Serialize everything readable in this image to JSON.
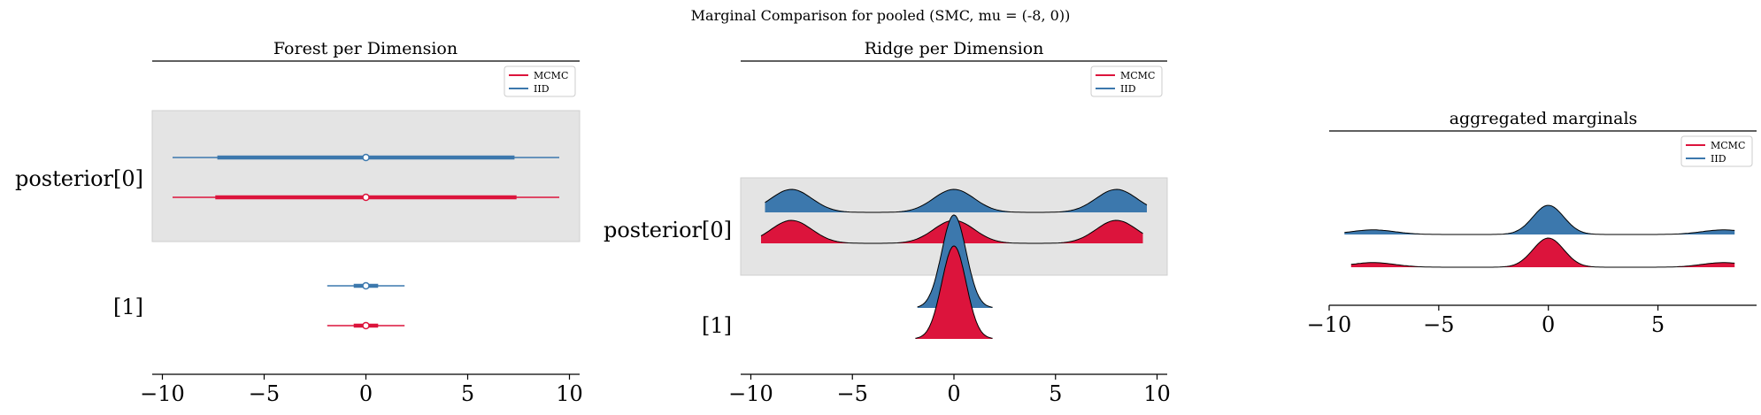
{
  "figure": {
    "title": "Marginal Comparison for pooled (SMC, mu = (-8, 0))"
  },
  "colors": {
    "MCMC": "#dc143c",
    "IID": "#3c78ad",
    "band": "#e4e4e4"
  },
  "chart_data": [
    {
      "type": "forest",
      "title": "Forest per Dimension",
      "y_labels": [
        "posterior[0]",
        "[1]"
      ],
      "x_ticks": [
        -10,
        -5,
        0,
        5,
        10
      ],
      "xlim": [
        -10.5,
        10.5
      ],
      "legend": {
        "position": "top-right",
        "entries": [
          "MCMC",
          "IID"
        ]
      },
      "series": [
        {
          "name": "IID",
          "rows": [
            {
              "label": "posterior[0]",
              "median": 0,
              "hdi_50": [
                -7.3,
                7.3
              ],
              "hdi_94": [
                -9.5,
                9.5
              ]
            },
            {
              "label": "[1]",
              "median": 0,
              "hdi_50": [
                -0.6,
                0.6
              ],
              "hdi_94": [
                -1.9,
                1.9
              ]
            }
          ]
        },
        {
          "name": "MCMC",
          "rows": [
            {
              "label": "posterior[0]",
              "median": 0,
              "hdi_50": [
                -7.4,
                7.4
              ],
              "hdi_94": [
                -9.5,
                9.5
              ]
            },
            {
              "label": "[1]",
              "median": 0,
              "hdi_50": [
                -0.6,
                0.6
              ],
              "hdi_94": [
                -1.9,
                1.9
              ]
            }
          ]
        }
      ]
    },
    {
      "type": "ridgeplot",
      "title": "Ridge per Dimension",
      "y_labels": [
        "posterior[0]",
        "[1]"
      ],
      "x_ticks": [
        -10,
        -5,
        0,
        5,
        10
      ],
      "xlim": [
        -10.5,
        10.5
      ],
      "legend": {
        "position": "top-right",
        "entries": [
          "MCMC",
          "IID"
        ]
      },
      "series": [
        {
          "name": "IID",
          "rows": [
            {
              "label": "posterior[0]",
              "range": [
                -9.3,
                9.5
              ],
              "modes": [
                -8,
                0,
                8
              ],
              "sd": 1.0
            },
            {
              "label": "[1]",
              "range": [
                -1.8,
                1.9
              ],
              "modes": [
                0
              ],
              "sd": 0.6
            }
          ]
        },
        {
          "name": "MCMC",
          "rows": [
            {
              "label": "posterior[0]",
              "range": [
                -9.5,
                9.3
              ],
              "modes": [
                -8,
                0,
                8
              ],
              "sd": 1.0
            },
            {
              "label": "[1]",
              "range": [
                -1.9,
                1.9
              ],
              "modes": [
                0
              ],
              "sd": 0.6
            }
          ]
        }
      ]
    },
    {
      "type": "density",
      "title": "aggregated marginals",
      "x_ticks": [
        -10,
        -5,
        0,
        5
      ],
      "xlim": [
        -10,
        9.5
      ],
      "legend": {
        "position": "top-right",
        "entries": [
          "MCMC",
          "IID"
        ]
      },
      "series": [
        {
          "name": "IID",
          "range": [
            -9.3,
            8.5
          ],
          "components": [
            {
              "mu": -8,
              "sd": 1.0,
              "w": 0.12
            },
            {
              "mu": 0,
              "sd": 0.7,
              "w": 0.76
            },
            {
              "mu": 8,
              "sd": 1.0,
              "w": 0.12
            }
          ]
        },
        {
          "name": "MCMC",
          "range": [
            -9.0,
            8.5
          ],
          "components": [
            {
              "mu": -8,
              "sd": 1.0,
              "w": 0.12
            },
            {
              "mu": 0,
              "sd": 0.7,
              "w": 0.76
            },
            {
              "mu": 8,
              "sd": 1.0,
              "w": 0.12
            }
          ]
        }
      ]
    }
  ]
}
